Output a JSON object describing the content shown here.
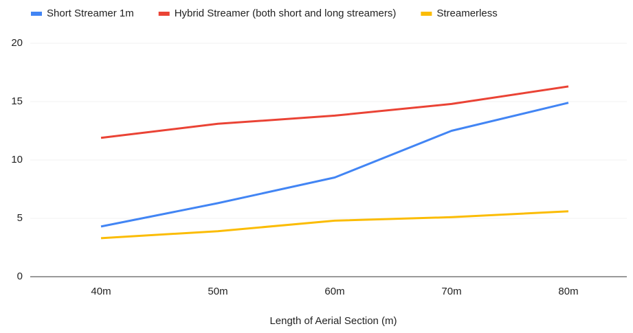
{
  "chart_data": {
    "type": "line",
    "x_label": "Length of Aerial Section (m)",
    "categories": [
      "40m",
      "50m",
      "60m",
      "70m",
      "80m"
    ],
    "series": [
      {
        "name": "Short Streamer 1m",
        "color": "#4285f4",
        "values": [
          4.3,
          6.3,
          8.5,
          12.5,
          14.9
        ]
      },
      {
        "name": "Hybrid Streamer (both short and long streamers)",
        "color": "#ea4335",
        "values": [
          11.9,
          13.1,
          13.8,
          14.8,
          16.3
        ]
      },
      {
        "name": "Streamerless",
        "color": "#fbbc04",
        "values": [
          3.3,
          3.9,
          4.8,
          5.1,
          5.6
        ]
      }
    ],
    "ylim": [
      0,
      20
    ],
    "yticks": [
      0,
      5,
      10,
      15,
      20
    ],
    "grid": true,
    "legend": "top"
  }
}
